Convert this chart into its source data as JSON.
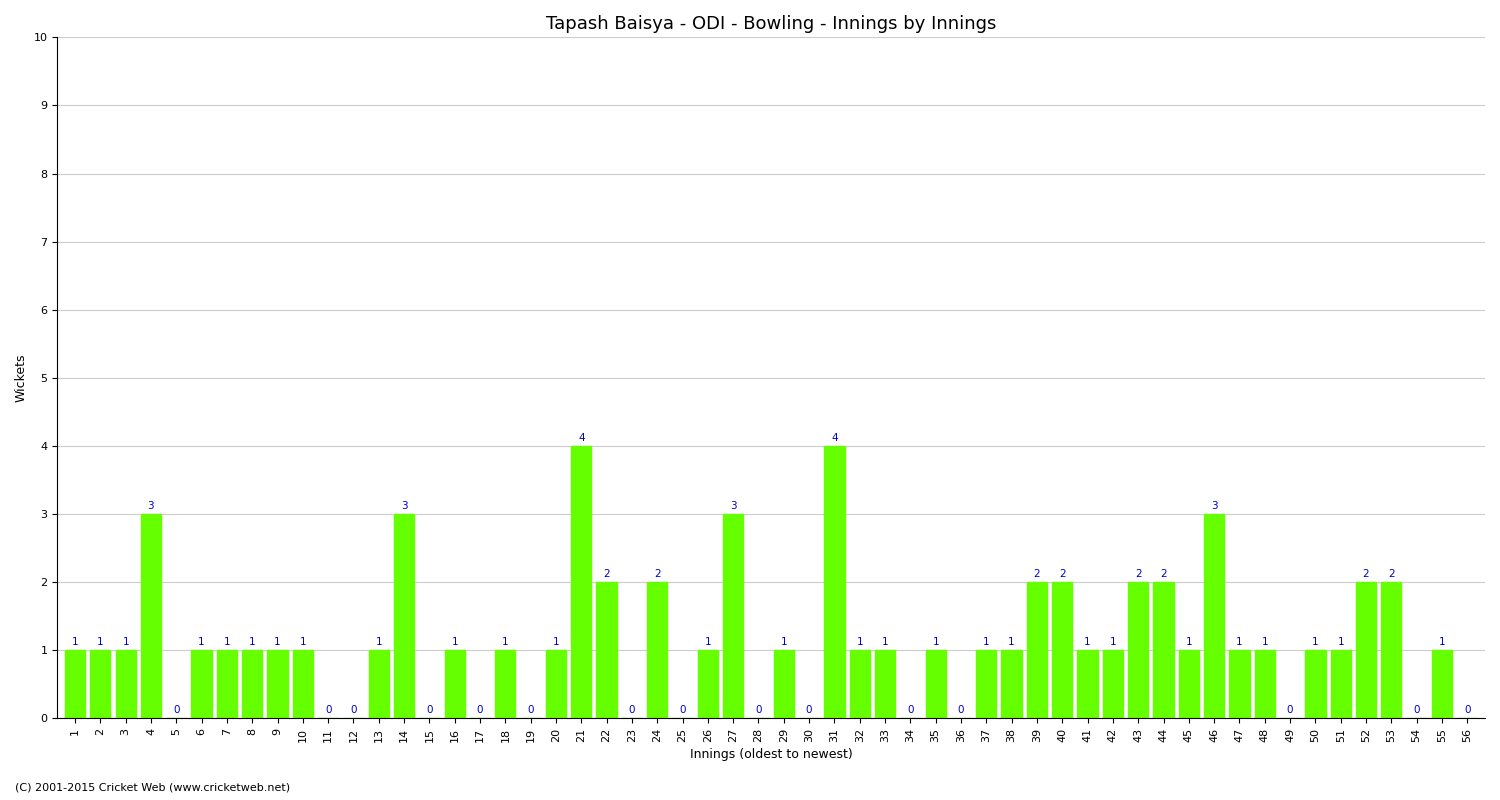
{
  "title": "Tapash Baisya - ODI - Bowling - Innings by Innings",
  "xlabel": "Innings (oldest to newest)",
  "ylabel": "Wickets",
  "background_color": "#ffffff",
  "plot_background": "#ffffff",
  "bar_color": "#66ff00",
  "bar_edge_color": "#66ff00",
  "label_color": "#0000cc",
  "grid_color": "#cccccc",
  "ylim": [
    0,
    10
  ],
  "yticks": [
    0,
    1,
    2,
    3,
    4,
    5,
    6,
    7,
    8,
    9,
    10
  ],
  "innings": [
    1,
    2,
    3,
    4,
    5,
    6,
    7,
    8,
    9,
    10,
    11,
    12,
    13,
    14,
    15,
    16,
    17,
    18,
    19,
    20,
    21,
    22,
    23,
    24,
    25,
    26,
    27,
    28,
    29,
    30,
    31,
    32,
    33,
    34,
    35,
    36,
    37,
    38,
    39,
    40,
    41,
    42,
    43,
    44,
    45,
    46,
    47,
    48,
    49,
    50,
    51,
    52,
    53,
    54,
    55,
    56
  ],
  "wickets": [
    1,
    1,
    1,
    3,
    0,
    1,
    1,
    1,
    1,
    1,
    0,
    0,
    1,
    3,
    0,
    1,
    0,
    1,
    0,
    1,
    4,
    2,
    0,
    2,
    0,
    1,
    3,
    0,
    1,
    0,
    4,
    1,
    1,
    0,
    1,
    0,
    1,
    1,
    2,
    2,
    1,
    1,
    2,
    2,
    1,
    3,
    1,
    1,
    0,
    1,
    1,
    2,
    2,
    0,
    1,
    0
  ],
  "footer": "(C) 2001-2015 Cricket Web (www.cricketweb.net)",
  "title_fontsize": 13,
  "axis_fontsize": 9,
  "tick_fontsize": 8,
  "label_fontsize": 7.5,
  "footer_fontsize": 8
}
